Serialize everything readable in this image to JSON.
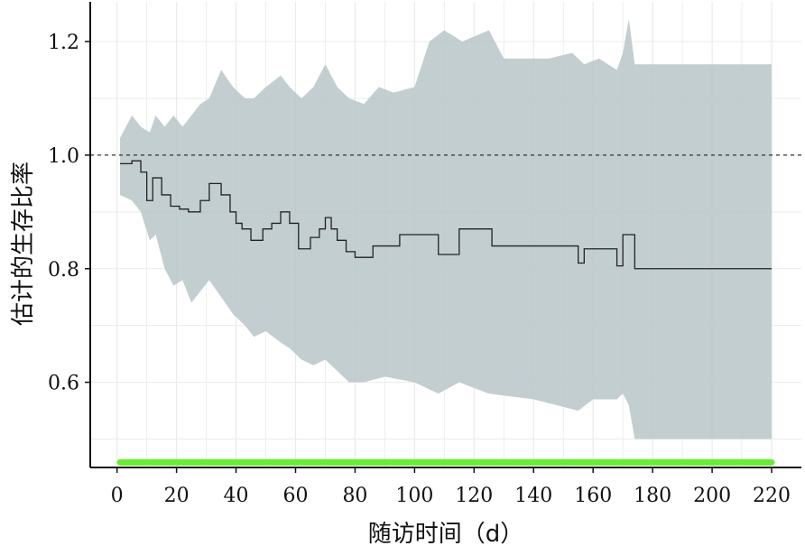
{
  "chart_data": {
    "type": "line",
    "xlabel": "随访时间（d）",
    "ylabel": "估计的生存比率",
    "xlim": [
      -9,
      230
    ],
    "ylim": [
      0.45,
      1.27
    ],
    "x_ticks": [
      0,
      20,
      40,
      60,
      80,
      100,
      120,
      140,
      160,
      180,
      200,
      220
    ],
    "y_ticks": [
      0.6,
      0.8,
      1.0,
      1.2
    ],
    "x_tick_labels": [
      "0",
      "20",
      "40",
      "60",
      "80",
      "100",
      "120",
      "140",
      "160",
      "180",
      "200",
      "220"
    ],
    "y_tick_labels": [
      "0.6",
      "0.8",
      "1.0",
      "1.2"
    ],
    "grid": true,
    "reference_line": {
      "y": 1.0,
      "style": "dashed"
    },
    "colors": {
      "band": "#b9c6c8",
      "line": "#222222",
      "rug": "#66ee33",
      "grid": "#e8ecec"
    },
    "survival_step": {
      "x": [
        1,
        5,
        8,
        10,
        12,
        15,
        18,
        21,
        24,
        28,
        31,
        35,
        38,
        40,
        42,
        45,
        49,
        52,
        55,
        58,
        61,
        65,
        68,
        70,
        72,
        74,
        77,
        80,
        86,
        95,
        108,
        115,
        126,
        155,
        157,
        168,
        170,
        174,
        220
      ],
      "y": [
        0.985,
        0.99,
        0.97,
        0.92,
        0.96,
        0.93,
        0.91,
        0.905,
        0.9,
        0.92,
        0.95,
        0.93,
        0.9,
        0.88,
        0.87,
        0.85,
        0.87,
        0.88,
        0.9,
        0.88,
        0.835,
        0.855,
        0.87,
        0.89,
        0.87,
        0.85,
        0.83,
        0.82,
        0.84,
        0.86,
        0.825,
        0.87,
        0.84,
        0.81,
        0.835,
        0.805,
        0.86,
        0.8,
        0.8
      ]
    },
    "ci_upper": {
      "x": [
        1,
        5,
        8,
        11,
        13,
        16,
        19,
        22,
        25,
        28,
        31,
        35,
        39,
        43,
        46,
        50,
        55,
        58,
        62,
        66,
        70,
        74,
        78,
        83,
        88,
        93,
        100,
        105,
        110,
        116,
        125,
        130,
        145,
        153,
        157,
        162,
        168,
        170,
        172,
        174,
        220
      ],
      "y": [
        1.03,
        1.07,
        1.05,
        1.04,
        1.07,
        1.05,
        1.07,
        1.05,
        1.07,
        1.09,
        1.1,
        1.15,
        1.12,
        1.1,
        1.1,
        1.12,
        1.14,
        1.12,
        1.1,
        1.12,
        1.16,
        1.12,
        1.1,
        1.09,
        1.12,
        1.11,
        1.12,
        1.2,
        1.22,
        1.2,
        1.22,
        1.17,
        1.17,
        1.18,
        1.16,
        1.17,
        1.15,
        1.18,
        1.24,
        1.16,
        1.16
      ]
    },
    "ci_lower": {
      "x": [
        1,
        5,
        8,
        11,
        13,
        16,
        19,
        22,
        25,
        28,
        31,
        35,
        39,
        43,
        46,
        50,
        55,
        58,
        62,
        66,
        70,
        74,
        78,
        83,
        90,
        100,
        108,
        115,
        125,
        140,
        155,
        160,
        168,
        170,
        172,
        174,
        220
      ],
      "y": [
        0.93,
        0.92,
        0.9,
        0.85,
        0.86,
        0.8,
        0.77,
        0.78,
        0.74,
        0.76,
        0.78,
        0.75,
        0.72,
        0.7,
        0.68,
        0.69,
        0.67,
        0.66,
        0.64,
        0.63,
        0.64,
        0.62,
        0.6,
        0.6,
        0.61,
        0.6,
        0.58,
        0.6,
        0.58,
        0.57,
        0.55,
        0.57,
        0.57,
        0.58,
        0.56,
        0.5,
        0.5
      ]
    },
    "rug": {
      "x_start": 1,
      "x_end": 220,
      "y": 0.459
    }
  }
}
